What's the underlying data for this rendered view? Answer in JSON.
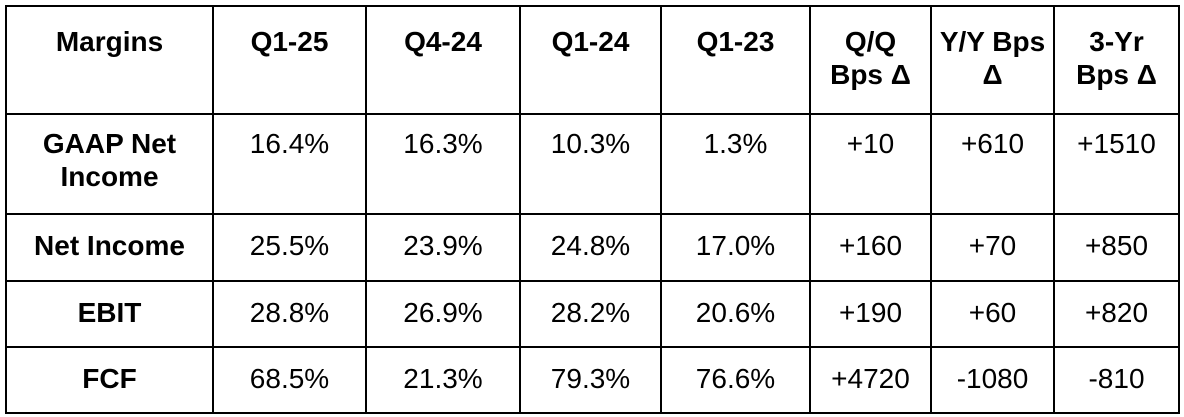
{
  "table": {
    "header": [
      "Margins",
      "Q1-25",
      "Q4-24",
      "Q1-24",
      "Q1-23",
      "Q/Q Bps Δ",
      "Y/Y Bps Δ",
      "3-Yr Bps Δ"
    ],
    "rows": [
      [
        "GAAP Net Income",
        "16.4%",
        "16.3%",
        "10.3%",
        "1.3%",
        "+10",
        "+610",
        "+1510"
      ],
      [
        "Net Income",
        "25.5%",
        "23.9%",
        "24.8%",
        "17.0%",
        "+160",
        "+70",
        "+850"
      ],
      [
        "EBIT",
        "28.8%",
        "26.9%",
        "28.2%",
        "20.6%",
        "+190",
        "+60",
        "+820"
      ],
      [
        "FCF",
        "68.5%",
        "21.3%",
        "79.3%",
        "76.6%",
        "+4720",
        "-1080",
        "-810"
      ]
    ]
  }
}
